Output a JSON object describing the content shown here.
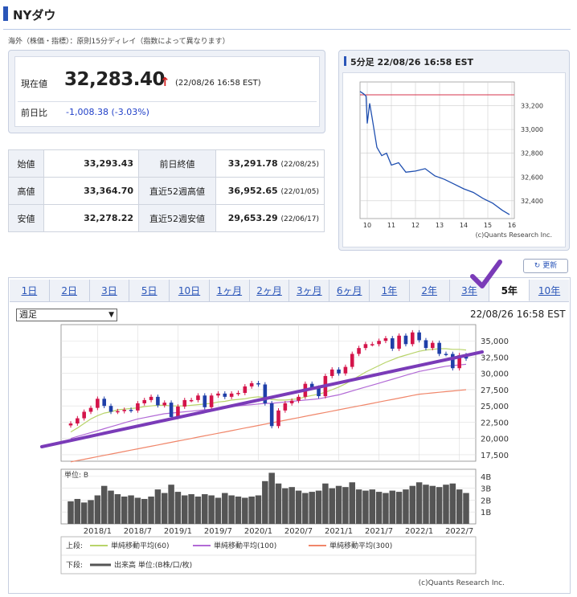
{
  "page": {
    "title": "NYダウ",
    "note": "海外（株価・指標）：原則15分ディレイ（指数によって異なります）"
  },
  "current": {
    "label": "現在値",
    "price": "32,283.40",
    "arrow": "↑",
    "time": "(22/08/26 16:58 EST)",
    "change_label": "前日比",
    "change_value": "-1,008.38 (-3.03%)"
  },
  "quotes": {
    "rows": [
      {
        "l1": "始値",
        "v1": "33,293.43",
        "l2": "前日終値",
        "v2": "33,291.78",
        "d2": "(22/08/25)"
      },
      {
        "l1": "高値",
        "v1": "33,364.70",
        "l2": "直近52週高値",
        "v2": "36,952.65",
        "d2": "(22/01/05)"
      },
      {
        "l1": "安値",
        "v1": "32,278.22",
        "l2": "直近52週安値",
        "v2": "29,653.29",
        "d2": "(22/06/17)"
      }
    ]
  },
  "colors": {
    "accent": "#2a55b8",
    "price_line": "#1f4fb0",
    "ref_line": "#d6334b",
    "candle_up": "#d4144a",
    "candle_down": "#1f3fa8",
    "ma60": "#b8d46a",
    "ma100": "#b26ad6",
    "ma300": "#f0866a",
    "trendline": "#7a3bb8",
    "check": "#7a3bb8"
  },
  "refresh_label": "更新",
  "tabs": [
    "1日",
    "2日",
    "3日",
    "5日",
    "10日",
    "1ヶ月",
    "2ヶ月",
    "3ヶ月",
    "6ヶ月",
    "1年",
    "2年",
    "3年",
    "5年",
    "10年"
  ],
  "active_tab": "5年",
  "period_select": "週足",
  "chart_time": "22/08/26 16:58 EST",
  "chart_data": [
    {
      "type": "line",
      "title": "5分足 22/08/26 16:58 EST",
      "x": [
        9.7,
        9.85,
        9.95,
        10.0,
        10.1,
        10.2,
        10.4,
        10.6,
        10.8,
        11.0,
        11.3,
        11.6,
        12.0,
        12.4,
        12.8,
        13.2,
        13.6,
        14.0,
        14.4,
        14.8,
        15.2,
        15.6,
        15.9
      ],
      "values": [
        33320,
        33300,
        33280,
        33050,
        33220,
        33100,
        32850,
        32780,
        32800,
        32700,
        32720,
        32640,
        32650,
        32670,
        32610,
        32580,
        32540,
        32500,
        32470,
        32420,
        32380,
        32320,
        32283
      ],
      "reference_line": 33291.78,
      "xticks": [
        10,
        11,
        12,
        13,
        14,
        15,
        16
      ],
      "yticks": [
        "33,200",
        "33,000",
        "32,800",
        "32,600",
        "32,400"
      ],
      "ylim": [
        32250,
        33400
      ],
      "credit": "(c)Quants Research Inc."
    },
    {
      "type": "candlestick",
      "x": [
        "2017/9",
        "2017/10",
        "2017/11",
        "2017/12",
        "2018/1",
        "2018/2",
        "2018/3",
        "2018/4",
        "2018/5",
        "2018/6",
        "2018/7",
        "2018/8",
        "2018/9",
        "2018/10",
        "2018/11",
        "2018/12",
        "2019/1",
        "2019/2",
        "2019/3",
        "2019/4",
        "2019/5",
        "2019/6",
        "2019/7",
        "2019/8",
        "2019/9",
        "2019/10",
        "2019/11",
        "2019/12",
        "2020/1",
        "2020/2",
        "2020/3",
        "2020/4",
        "2020/5",
        "2020/6",
        "2020/7",
        "2020/8",
        "2020/9",
        "2020/10",
        "2020/11",
        "2020/12",
        "2021/1",
        "2021/2",
        "2021/3",
        "2021/4",
        "2021/5",
        "2021/6",
        "2021/7",
        "2021/8",
        "2021/9",
        "2021/10",
        "2021/11",
        "2021/12",
        "2022/1",
        "2022/2",
        "2022/3",
        "2022/4",
        "2022/5",
        "2022/6",
        "2022/7",
        "2022/8"
      ],
      "values": [
        22300,
        23100,
        24100,
        24700,
        26100,
        25000,
        24100,
        24200,
        24400,
        24300,
        25400,
        25900,
        26400,
        25100,
        25500,
        23300,
        24900,
        25900,
        25900,
        26600,
        24800,
        26600,
        26900,
        26400,
        26900,
        27000,
        28000,
        28500,
        28300,
        25400,
        21900,
        24300,
        25400,
        25800,
        26400,
        28400,
        27800,
        26500,
        29600,
        30600,
        30000,
        31000,
        33000,
        33900,
        34500,
        34500,
        35000,
        35400,
        33800,
        35800,
        34500,
        36300,
        35100,
        33900,
        34700,
        33000,
        32990,
        30800,
        32800,
        32283
      ],
      "moving_averages": [
        {
          "name": "単純移動平均(60)",
          "values": [
            21000,
            21600,
            22300,
            23000,
            23500,
            23900,
            24100,
            24400,
            24500,
            24600,
            24700,
            24900,
            25000,
            25100,
            25100,
            25000,
            25000,
            25000,
            25100,
            25200,
            25300,
            25400,
            25600,
            25700,
            25900,
            26000,
            26100,
            26300,
            26400,
            26300,
            26000,
            25900,
            25900,
            26000,
            26100,
            26400,
            26600,
            26800,
            27100,
            27500,
            27900,
            28400,
            29000,
            29600,
            30200,
            30700,
            31200,
            31700,
            32100,
            32500,
            32800,
            33100,
            33400,
            33600,
            33700,
            33800,
            33800,
            33700,
            33700,
            33600
          ]
        },
        {
          "name": "単純移動平均(100)",
          "values": [
            20000,
            20300,
            20600,
            20900,
            21200,
            21500,
            21800,
            22100,
            22400,
            22700,
            23000,
            23200,
            23400,
            23600,
            23800,
            23900,
            24000,
            24100,
            24200,
            24300,
            24400,
            24500,
            24700,
            24800,
            24900,
            25000,
            25100,
            25200,
            25300,
            25400,
            25400,
            25500,
            25600,
            25700,
            25800,
            25900,
            26000,
            26100,
            26300,
            26500,
            26700,
            27000,
            27300,
            27600,
            27900,
            28200,
            28500,
            28800,
            29100,
            29400,
            29700,
            30000,
            30300,
            30500,
            30700,
            30900,
            31100,
            31200,
            31300,
            31400
          ]
        },
        {
          "name": "単純移動平均(300)",
          "values": [
            16400,
            16600,
            16800,
            17000,
            17200,
            17400,
            17600,
            17800,
            18000,
            18200,
            18400,
            18600,
            18800,
            19000,
            19200,
            19400,
            19600,
            19800,
            20000,
            20200,
            20400,
            20600,
            20800,
            21000,
            21200,
            21400,
            21600,
            21800,
            22000,
            22200,
            22400,
            22600,
            22800,
            23000,
            23200,
            23400,
            23600,
            23800,
            24000,
            24200,
            24400,
            24600,
            24800,
            25000,
            25200,
            25400,
            25600,
            25800,
            26000,
            26200,
            26400,
            26600,
            26800,
            26900,
            27000,
            27100,
            27200,
            27300,
            27400,
            27500
          ]
        }
      ],
      "xticks": [
        "2018/1",
        "2018/7",
        "2019/1",
        "2019/7",
        "2020/1",
        "2020/7",
        "2021/1",
        "2021/7",
        "2022/1",
        "2022/7"
      ],
      "yticks": [
        "35,000",
        "32,500",
        "30,000",
        "27,500",
        "25,000",
        "22,500",
        "20,000",
        "17,500"
      ],
      "ylim": [
        16500,
        37500
      ]
    },
    {
      "type": "bar",
      "title": "単位: B",
      "values": [
        1.9,
        2.1,
        1.8,
        2.0,
        2.4,
        3.2,
        2.8,
        2.5,
        2.3,
        2.4,
        2.2,
        2.1,
        2.3,
        2.9,
        2.6,
        3.3,
        2.7,
        2.4,
        2.5,
        2.3,
        2.5,
        2.4,
        2.2,
        2.6,
        2.4,
        2.3,
        2.2,
        2.3,
        2.4,
        3.6,
        4.3,
        3.4,
        3.0,
        3.1,
        2.8,
        2.6,
        2.7,
        2.8,
        3.4,
        3.0,
        3.2,
        3.1,
        3.5,
        2.9,
        2.8,
        2.9,
        2.7,
        2.6,
        2.8,
        2.7,
        2.9,
        3.2,
        3.5,
        3.3,
        3.2,
        3.1,
        3.3,
        3.4,
        2.9,
        2.6
      ],
      "yticks": [
        "4B",
        "3B",
        "2B",
        "1B"
      ],
      "ylim": [
        0,
        4.6
      ]
    }
  ],
  "legend": {
    "upper_label": "上段:",
    "lower_label": "下段:",
    "ma60": "単純移動平均(60)",
    "ma100": "単純移動平均(100)",
    "ma300": "単純移動平均(300)",
    "volume": "出来高 単位:(B株/口/枚)"
  },
  "credit": "(c)Quants Research Inc."
}
